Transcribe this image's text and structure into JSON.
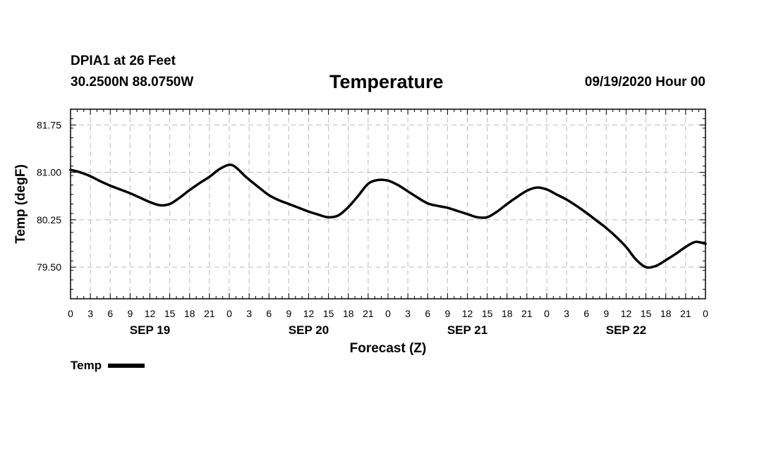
{
  "header": {
    "station": "DPIA1 at 26 Feet",
    "coords": "30.2500N 88.0750W",
    "title": "Temperature",
    "datetime": "09/19/2020 Hour 00"
  },
  "legend": {
    "label": "Temp"
  },
  "chart_data": {
    "type": "line",
    "title": "Temperature",
    "xlabel": "Forecast (Z)",
    "ylabel": "Temp (degF)",
    "xlim": [
      0,
      96
    ],
    "ylim": [
      79.0,
      82.0
    ],
    "yticks": [
      79.5,
      80.25,
      81.0,
      81.75
    ],
    "ytick_labels": [
      "79.50",
      "80.25",
      "81.00",
      "81.75"
    ],
    "xticks": [
      0,
      3,
      6,
      9,
      12,
      15,
      18,
      21,
      24,
      27,
      30,
      33,
      36,
      39,
      42,
      45,
      48,
      51,
      54,
      57,
      60,
      63,
      66,
      69,
      72,
      75,
      78,
      81,
      84,
      87,
      90,
      93,
      96
    ],
    "xtick_labels": [
      "0",
      "3",
      "6",
      "9",
      "12",
      "15",
      "18",
      "21",
      "0",
      "3",
      "6",
      "9",
      "12",
      "15",
      "18",
      "21",
      "0",
      "3",
      "6",
      "9",
      "12",
      "15",
      "18",
      "21",
      "0",
      "3",
      "6",
      "9",
      "12",
      "15",
      "18",
      "21",
      "0"
    ],
    "day_labels": [
      {
        "hour": 12,
        "label": "SEP 19"
      },
      {
        "hour": 36,
        "label": "SEP 20"
      },
      {
        "hour": 60,
        "label": "SEP 21"
      },
      {
        "hour": 84,
        "label": "SEP 22"
      }
    ],
    "grid": true,
    "legend_position": "bottom-left",
    "series": [
      {
        "name": "Temp",
        "color": "#000000",
        "x": [
          0,
          1.5,
          3,
          4.5,
          6,
          7.5,
          9,
          10.5,
          12,
          13.5,
          15,
          16.5,
          18,
          19.5,
          21,
          22.5,
          24,
          25,
          26.5,
          28.5,
          30,
          31.5,
          33,
          34.5,
          36,
          37.5,
          39,
          40.5,
          42,
          43.5,
          45,
          46.5,
          48,
          49.5,
          51,
          52.5,
          54,
          55.5,
          57,
          58.5,
          60,
          61.5,
          63,
          64.5,
          66,
          67.5,
          69,
          70.5,
          72,
          73.5,
          75,
          76.5,
          78,
          79.5,
          81,
          82.5,
          84,
          85.5,
          87,
          88.5,
          90,
          91.5,
          93,
          94.5,
          96
        ],
        "y": [
          81.04,
          81.0,
          80.94,
          80.86,
          80.79,
          80.73,
          80.67,
          80.6,
          80.53,
          80.48,
          80.5,
          80.6,
          80.72,
          80.83,
          80.93,
          81.05,
          81.12,
          81.08,
          80.93,
          80.76,
          80.64,
          80.56,
          80.5,
          80.44,
          80.38,
          80.33,
          80.29,
          80.32,
          80.45,
          80.63,
          80.82,
          80.88,
          80.87,
          80.8,
          80.7,
          80.6,
          80.51,
          80.47,
          80.44,
          80.39,
          80.34,
          80.29,
          80.29,
          80.38,
          80.5,
          80.61,
          80.71,
          80.76,
          80.73,
          80.65,
          80.57,
          80.47,
          80.36,
          80.24,
          80.12,
          79.98,
          79.82,
          79.62,
          79.5,
          79.52,
          79.61,
          79.71,
          79.82,
          79.9,
          79.87
        ]
      }
    ]
  }
}
